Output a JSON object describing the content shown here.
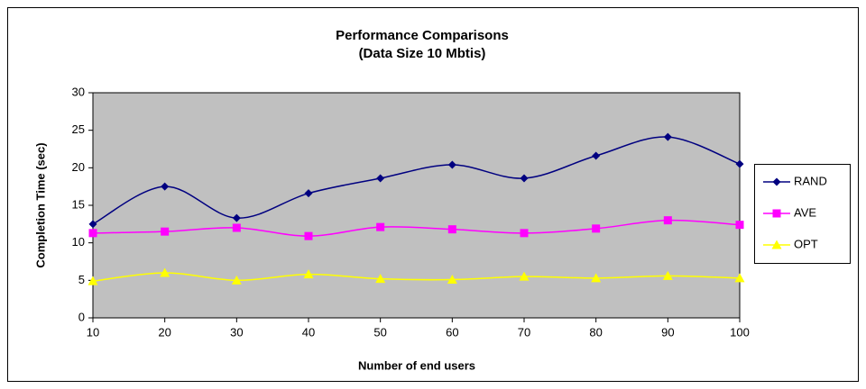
{
  "chart_data": {
    "type": "line",
    "title": "Performance Comparisons",
    "subtitle": "(Data Size 10 Mbtis)",
    "x_label": "Number of end users",
    "y_label": "Completion Time (sec)",
    "x": [
      10,
      20,
      30,
      40,
      50,
      60,
      70,
      80,
      90,
      100
    ],
    "series": [
      {
        "name": "RAND",
        "color": "#000080",
        "marker": "diamond",
        "values": [
          12.5,
          17.5,
          13.3,
          16.6,
          18.6,
          20.4,
          18.6,
          21.6,
          24.1,
          20.5
        ]
      },
      {
        "name": "AVE",
        "color": "#ff00ff",
        "marker": "square",
        "values": [
          11.3,
          11.5,
          12,
          10.9,
          12.1,
          11.8,
          11.3,
          11.9,
          13,
          12.4
        ]
      },
      {
        "name": "OPT",
        "color": "#ffff00",
        "marker": "triangle",
        "values": [
          4.9,
          6,
          5,
          5.8,
          5.2,
          5.1,
          5.5,
          5.3,
          5.6,
          5.3
        ]
      }
    ],
    "xlim": [
      10,
      100
    ],
    "xticks": [
      10,
      20,
      30,
      40,
      50,
      60,
      70,
      80,
      90,
      100
    ],
    "ylim": [
      0,
      30
    ],
    "yticks": [
      0,
      5,
      10,
      15,
      20,
      25,
      30
    ],
    "smooth": true,
    "legend": "right",
    "plot_background": "#c0c0c0"
  }
}
